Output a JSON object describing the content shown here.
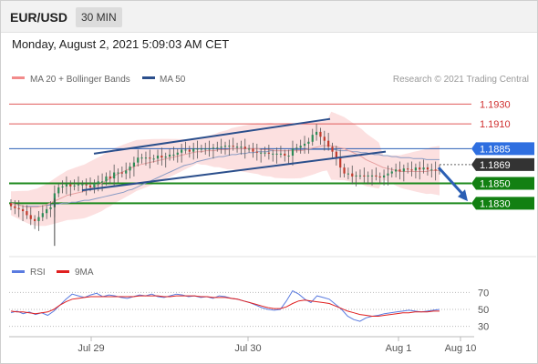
{
  "header": {
    "symbol": "EUR/USD",
    "timeframe": "30 MIN",
    "datetime": "Monday, August 2, 2021 5:09:03 AM CET"
  },
  "legend": {
    "ma20_label": "MA 20 + Bollinger Bands",
    "ma50_label": "MA 50",
    "credit": "Research © 2021 Trading Central",
    "ma20_color": "#f28b8b",
    "ma50_color": "#2b4f8c"
  },
  "rsi_legend": {
    "rsi_label": "RSI",
    "ma_label": "9MA",
    "rsi_color": "#5a7be0",
    "ma_color": "#e02020"
  },
  "chart_data": [
    {
      "type": "candlestick",
      "title": "",
      "ylim": [
        1.1778,
        1.1945
      ],
      "x_ticks": [
        "Jul 29",
        "Jul 30",
        "Aug 1",
        "Aug 10"
      ],
      "levels": [
        {
          "value": 1.193,
          "label": "1.1930",
          "style": "red-thin"
        },
        {
          "value": 1.191,
          "label": "1.1910",
          "style": "red-thin"
        },
        {
          "value": 1.1885,
          "label": "1.1885",
          "style": "blue"
        },
        {
          "value": 1.1869,
          "label": "1.1869",
          "style": "current"
        },
        {
          "value": 1.185,
          "label": "1.1850",
          "style": "green"
        },
        {
          "value": 1.183,
          "label": "1.1830",
          "style": "green"
        }
      ],
      "close": [
        1.1827,
        1.1825,
        1.1824,
        1.1822,
        1.1818,
        1.1814,
        1.1812,
        1.1816,
        1.182,
        1.1824,
        1.1826,
        1.184,
        1.1846,
        1.1847,
        1.1849,
        1.1847,
        1.1848,
        1.1849,
        1.1849,
        1.1848,
        1.1846,
        1.185,
        1.1852,
        1.1852,
        1.1857,
        1.1855,
        1.1861,
        1.1861,
        1.186,
        1.1863,
        1.1867,
        1.1871,
        1.1876,
        1.1876,
        1.1876,
        1.1875,
        1.1875,
        1.1878,
        1.1876,
        1.1877,
        1.1879,
        1.1879,
        1.1881,
        1.1884,
        1.1884,
        1.1882,
        1.1885,
        1.1885,
        1.1885,
        1.1885,
        1.1885,
        1.1886,
        1.1886,
        1.1887,
        1.1888,
        1.1888,
        1.1887,
        1.1887,
        1.1887,
        1.1885,
        1.1885,
        1.1882,
        1.1881,
        1.1881,
        1.1881,
        1.188,
        1.188,
        1.188,
        1.188,
        1.1878,
        1.1878,
        1.1885,
        1.1886,
        1.1888,
        1.189,
        1.1892,
        1.1899,
        1.1902,
        1.1897,
        1.1893,
        1.1887,
        1.1882,
        1.1876,
        1.1866,
        1.186,
        1.186,
        1.1857,
        1.1858,
        1.1858,
        1.1857,
        1.1858,
        1.1858,
        1.1857,
        1.1856,
        1.1858,
        1.186,
        1.1862,
        1.1864,
        1.1862,
        1.1865,
        1.1864,
        1.1863,
        1.1866,
        1.1864,
        1.1866,
        1.1864,
        1.1864,
        1.1863,
        1.1865
      ],
      "ma20": [
        1.183,
        1.1829,
        1.1828,
        1.1827,
        1.1826,
        1.1826,
        1.1826,
        1.1827,
        1.1828,
        1.183,
        1.1832,
        1.1834,
        1.1836,
        1.1838,
        1.1839,
        1.184,
        1.1841,
        1.1842,
        1.1844,
        1.1846,
        1.1848,
        1.185,
        1.1853,
        1.1855,
        1.1858,
        1.186,
        1.1862,
        1.1864,
        1.1866,
        1.1868,
        1.1869,
        1.187,
        1.1871,
        1.1872,
        1.1873,
        1.1874,
        1.1875,
        1.1876,
        1.1877,
        1.1878,
        1.1879,
        1.188,
        1.1881,
        1.1882,
        1.1882,
        1.1883,
        1.1883,
        1.1883,
        1.1884,
        1.1884,
        1.1884,
        1.1885,
        1.1885,
        1.1885,
        1.1885,
        1.1885,
        1.1885,
        1.1885,
        1.1884,
        1.1884,
        1.1884,
        1.1883,
        1.1883,
        1.1883,
        1.1883,
        1.1883,
        1.1883,
        1.1883,
        1.1884,
        1.1885,
        1.1886,
        1.1887,
        1.1888,
        1.1888,
        1.1888,
        1.1887,
        1.1886,
        1.1885,
        1.1883,
        1.1881,
        1.1879,
        1.1877,
        1.1874,
        1.1872,
        1.187,
        1.1868,
        1.1866,
        1.1865,
        1.1864,
        1.1863,
        1.1862,
        1.1862,
        1.1862,
        1.1862,
        1.1862,
        1.1862,
        1.1862,
        1.1863,
        1.1863,
        1.1863
      ],
      "ma50": [
        1.183,
        1.1829,
        1.1828,
        1.1827,
        1.1827,
        1.1827,
        1.1827,
        1.1827,
        1.1828,
        1.1828,
        1.1829,
        1.1829,
        1.183,
        1.183,
        1.1831,
        1.1831,
        1.1832,
        1.1833,
        1.1833,
        1.1834,
        1.1835,
        1.1836,
        1.1837,
        1.1838,
        1.1839,
        1.184,
        1.1841,
        1.1843,
        1.1844,
        1.1846,
        1.1848,
        1.185,
        1.1852,
        1.1854,
        1.1856,
        1.1858,
        1.186,
        1.1862,
        1.1864,
        1.1866,
        1.1868,
        1.1869,
        1.187,
        1.1872,
        1.1873,
        1.1874,
        1.1875,
        1.1876,
        1.1877,
        1.1877,
        1.1878,
        1.1879,
        1.1879,
        1.188,
        1.188,
        1.1881,
        1.1881,
        1.1882,
        1.1882,
        1.1882,
        1.1883,
        1.1883,
        1.1883,
        1.1883,
        1.1883,
        1.1884,
        1.1884,
        1.1884,
        1.1884,
        1.1884,
        1.1884,
        1.1884,
        1.1884,
        1.1884,
        1.1884,
        1.1884,
        1.1883,
        1.1883,
        1.1883,
        1.1882,
        1.1882,
        1.1881,
        1.1881,
        1.188,
        1.1879,
        1.1879,
        1.1878,
        1.1878,
        1.1877,
        1.1877,
        1.1876,
        1.1876,
        1.1876,
        1.1875,
        1.1875,
        1.1875,
        1.1874,
        1.1874,
        1.1874,
        1.1874
      ],
      "channel_upper": [
        [
          1.188,
          1.1915
        ]
      ],
      "channel_lower": [
        [
          1.1843,
          1.1882
        ]
      ],
      "forecast_arrow": [
        1.1866,
        1.1832
      ]
    },
    {
      "type": "line",
      "title": "RSI",
      "ylim": [
        20,
        80
      ],
      "y_ticks": [
        70,
        50,
        30
      ],
      "rsi": [
        46,
        48,
        45,
        47,
        44,
        46,
        43,
        48,
        55,
        62,
        68,
        66,
        64,
        67,
        69,
        65,
        67,
        66,
        64,
        63,
        65,
        67,
        66,
        68,
        65,
        64,
        66,
        68,
        67,
        65,
        66,
        64,
        65,
        63,
        66,
        65,
        63,
        62,
        60,
        58,
        55,
        52,
        50,
        49,
        50,
        60,
        72,
        68,
        62,
        58,
        66,
        64,
        62,
        56,
        50,
        42,
        38,
        36,
        40,
        42,
        43,
        45,
        46,
        47,
        48,
        49,
        48,
        47,
        48,
        49,
        50
      ],
      "ma9": [
        48,
        47,
        47,
        46,
        45,
        46,
        47,
        50,
        55,
        59,
        62,
        63,
        64,
        65,
        65,
        65,
        65,
        65,
        65,
        65,
        65,
        66,
        66,
        66,
        66,
        65,
        65,
        66,
        66,
        66,
        66,
        65,
        65,
        64,
        64,
        64,
        63,
        62,
        60,
        58,
        56,
        54,
        52,
        51,
        51,
        53,
        57,
        60,
        61,
        60,
        59,
        58,
        57,
        54,
        51,
        48,
        46,
        44,
        43,
        42,
        42,
        43,
        44,
        45,
        46,
        46,
        47,
        47,
        47,
        48,
        48
      ]
    }
  ]
}
